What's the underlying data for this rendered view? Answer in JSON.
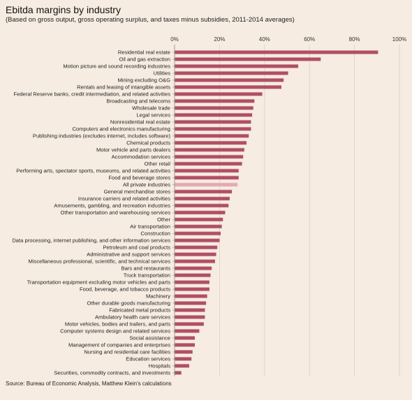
{
  "title": "Ebitda margins by industry",
  "subtitle": "(Based on gross output, gross operating surplus, and taxes minus subsidies, 2011-2014 averages)",
  "source": "Source: Bureau of Economic Analysis, Matthew Klein's calculations",
  "colors": {
    "background": "#f6ece1",
    "bar": "#b04f66",
    "highlight_bar": "#e3a9b1",
    "gridline": "#ddd0c2",
    "axis": "#888888"
  },
  "chart_data": {
    "type": "bar",
    "orientation": "horizontal",
    "title": "Ebitda margins by industry",
    "subtitle": "(Based on gross output, gross operating surplus, and taxes minus subsidies, 2011-2014 averages)",
    "xlim": [
      0,
      100
    ],
    "xticks": [
      "0%",
      "20%",
      "40%",
      "60%",
      "80%",
      "100%"
    ],
    "xtick_values": [
      0,
      20,
      40,
      60,
      80,
      100
    ],
    "grid": true,
    "highlight": "All private industries",
    "categories": [
      "Residential real estate",
      "Oil and gas extraction",
      "Motion picture and sound recording industries",
      "Utilities",
      "Mining excluding O&G",
      "Rentals and leasing of intangible assets",
      "Federal Reserve banks, credit intermediation, and related activities",
      "Broadcasting and telecoms",
      "Wholesale trade",
      "Legal services",
      "Nonresidential real estate",
      "Computers and electronics manufacturing",
      "Publishing industries (excludes internet, includes software)",
      "Chemical products",
      "Motor vehicle and parts dealers",
      "Accommodation services",
      "Other retail",
      "Performing arts, spectator sports, museums, and related activities",
      "Food and beverage stores",
      "All private industries",
      "General merchandise stores",
      "Insurance carriers and related activities",
      "Amusements, gambling, and recreation industries",
      "Other transportation and warehousing services",
      "Other",
      "Air transportation",
      "Construction",
      "Data processing, internet publishing, and other information services",
      "Petroleum and coal products",
      "Administrative and support services",
      "Miscellaneous professional, scientific, and technical services",
      "Bars and restaurants",
      "Truck transportation",
      "Transportation equipment excluding motor vehicles and parts",
      "Food, beverage, and tobacco products",
      "Machinery",
      "Other durable goods manufacturing",
      "Fabricated metal products",
      "Ambulatory health care services",
      "Motor vehicles, bodies and trailers, and parts",
      "Computer systems design and related services",
      "Social assistance",
      "Management of companies and enterprises",
      "Nursing and residential care facilities",
      "Education services",
      "Hospitals",
      "Securities, commodity contracts, and investments"
    ],
    "values": [
      90.5,
      65,
      55,
      50.5,
      48.5,
      47.5,
      39,
      35.5,
      35,
      34.5,
      34,
      34,
      33,
      32,
      31,
      30.5,
      30,
      28.5,
      28.5,
      28,
      25.5,
      24.5,
      24,
      22.5,
      21.5,
      21,
      20.5,
      20,
      19,
      18.5,
      18,
      16.5,
      16,
      15.5,
      15.5,
      14.5,
      14,
      13.5,
      13.5,
      13,
      11,
      9,
      9,
      8,
      7.5,
      6.5,
      3
    ]
  }
}
